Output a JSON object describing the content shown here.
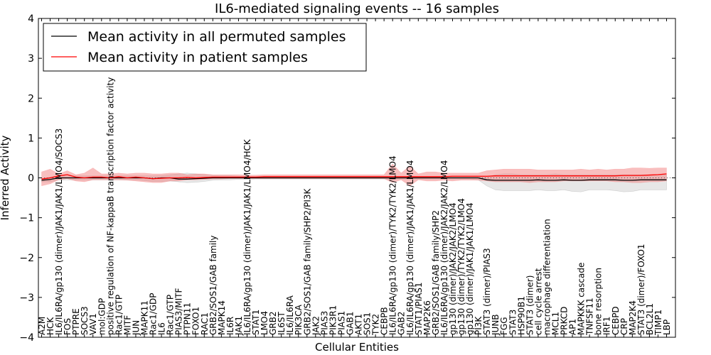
{
  "chart_data": {
    "type": "line",
    "title": "IL6-mediated signaling events -- 16 samples",
    "xlabel": "Cellular Entities",
    "ylabel": "Inferred Activity",
    "ylim": [
      -4,
      4
    ],
    "yticks": [
      -4,
      -3,
      -2,
      -1,
      0,
      1,
      2,
      3,
      4
    ],
    "ytick_labels": [
      "−4",
      "−3",
      "−2",
      "−1",
      "0",
      "1",
      "2",
      "3",
      "4"
    ],
    "grid": false,
    "legend_position": "top-left",
    "legend": [
      {
        "label": "Mean activity in all permuted samples",
        "color": "#000000"
      },
      {
        "label": "Mean activity in patient samples",
        "color": "#ff0000"
      }
    ],
    "categories": [
      "A2M",
      "HCK",
      "IL6/IL6RA/gp130 (dimer)/JAK1/JAK1/LMO4/SOCS3",
      "FOS",
      "PTPRE",
      "SOCS3",
      "VAV1",
      "mol:GDP",
      "positive regulation of NF-kappaB transcription factor activity",
      "Rac1/GTP",
      "MITF",
      "JUN",
      "MAPK11",
      "Rac1/GDP",
      "IL6",
      "Rac1/GTP",
      "PIAS3/MITF",
      "PTPN11",
      "FOXO1",
      "RAC1",
      "GRB2/SOS1/GAB family",
      "MAPK14",
      "IL6R",
      "JAK1",
      "IL6/IL6RA/gp130 (dimer)/JAK1/JAK1/LMO4/HCK",
      "STAT1",
      "LMO4",
      "GRB2",
      "IL6ST",
      "IL6/IL6RA",
      "PIK3CA",
      "GRB2/SOS1/GAB family/SHP2/PI3K",
      "JAK2",
      "PIAS3",
      "PIK3R1",
      "PIAS1",
      "GAB1",
      "AKT1",
      "SOS1",
      "TYK2",
      "CEBPB",
      "IL6/IL6RA/gp130 (dimer)/TYK2/TYK2/LMO4",
      "GAB2",
      "IL6/IL6RA/gp130 (dimer)/JAK1/JAK1/LMO4",
      "STAT1/PIAS1",
      "MAP2K6",
      "GRB2/SOS1/GAB family/SHP2",
      "IL6/IL6RA/gp130 (dimer)/JAK2/JAK2/LMO4",
      "gp130 (dimer)/JAK2/JAK2/LMO4",
      "gp130 (dimer)/TYK2/TYK2/LMO4",
      "gp130 (dimer)/JAK1/JAK1/LMO4",
      "PI3K",
      "STAT3 (dimer)/PIAS3",
      "JUNB",
      "FGG",
      "STAT3",
      "HSP90B1",
      "STAT3 (dimer)",
      "cell cycle arrest",
      "macrophage differentiation",
      "MCL1",
      "PRKCD",
      "AP1",
      "MAPKKK cascade",
      "TNFSF11",
      "bone resorption",
      "IRF1",
      "CEBPD",
      "CRP",
      "MAP2K4",
      "STAT3 (dimer)/FOXO1",
      "BCL2L1",
      "TIMP1",
      "LBP"
    ],
    "series": [
      {
        "name": "Mean activity in all permuted samples",
        "color": "#000000",
        "values": [
          -0.06,
          -0.04,
          0.0,
          0.0,
          0.0,
          0.0,
          0.0,
          0.0,
          0.0,
          0.0,
          0.0,
          0.0,
          0.0,
          -0.02,
          0.0,
          0.0,
          -0.03,
          -0.03,
          -0.02,
          -0.01,
          0.0,
          0.0,
          0.0,
          0.0,
          0.0,
          0.0,
          0.0,
          0.0,
          0.0,
          0.0,
          0.0,
          0.0,
          0.0,
          0.0,
          0.0,
          0.0,
          0.0,
          0.0,
          0.0,
          0.0,
          0.0,
          0.0,
          0.0,
          0.0,
          0.0,
          0.0,
          0.0,
          0.0,
          0.0,
          0.0,
          0.0,
          0.0,
          -0.05,
          -0.06,
          -0.06,
          -0.06,
          -0.06,
          -0.06,
          -0.05,
          -0.06,
          -0.06,
          -0.05,
          -0.06,
          -0.06,
          -0.05,
          -0.05,
          -0.05,
          -0.05,
          -0.06,
          -0.06,
          -0.05,
          -0.05,
          -0.05,
          -0.05
        ],
        "band_low": [
          -0.1,
          -0.1,
          -0.05,
          -0.05,
          -0.05,
          -0.05,
          -0.05,
          -0.05,
          -0.05,
          -0.05,
          -0.05,
          -0.05,
          -0.07,
          -0.09,
          -0.09,
          -0.08,
          -0.1,
          -0.12,
          -0.11,
          -0.09,
          -0.06,
          -0.05,
          -0.05,
          -0.04,
          -0.04,
          -0.03,
          -0.03,
          -0.03,
          -0.03,
          -0.03,
          -0.03,
          -0.03,
          -0.03,
          -0.03,
          -0.03,
          -0.03,
          -0.03,
          -0.03,
          -0.03,
          -0.03,
          -0.03,
          -0.03,
          -0.03,
          -0.03,
          -0.03,
          -0.03,
          -0.03,
          -0.03,
          -0.03,
          -0.03,
          -0.03,
          -0.05,
          -0.2,
          -0.3,
          -0.32,
          -0.32,
          -0.32,
          -0.32,
          -0.3,
          -0.32,
          -0.32,
          -0.3,
          -0.34,
          -0.35,
          -0.3,
          -0.3,
          -0.3,
          -0.32,
          -0.35,
          -0.34,
          -0.3,
          -0.3,
          -0.3,
          -0.3
        ],
        "band_high": [
          -0.02,
          0.02,
          0.05,
          0.05,
          0.05,
          0.05,
          0.05,
          0.05,
          0.05,
          0.05,
          0.05,
          0.05,
          0.05,
          0.05,
          0.06,
          0.08,
          0.1,
          0.12,
          0.1,
          0.08,
          0.06,
          0.05,
          0.05,
          0.04,
          0.04,
          0.03,
          0.03,
          0.03,
          0.03,
          0.03,
          0.03,
          0.03,
          0.03,
          0.03,
          0.03,
          0.03,
          0.03,
          0.03,
          0.03,
          0.03,
          0.03,
          0.03,
          0.03,
          0.03,
          0.03,
          0.03,
          0.03,
          0.03,
          0.03,
          0.03,
          0.03,
          0.03,
          0.02,
          0.08,
          0.1,
          0.1,
          0.08,
          0.08,
          0.08,
          0.08,
          0.1,
          0.08,
          0.08,
          0.08,
          0.08,
          0.08,
          0.08,
          0.08,
          0.08,
          0.08,
          0.08,
          0.08,
          0.08,
          0.08
        ]
      },
      {
        "name": "Mean activity in patient samples",
        "color": "#ff0000",
        "values": [
          -0.03,
          0.0,
          0.05,
          0.08,
          0.02,
          0.0,
          0.02,
          0.02,
          0.0,
          0.03,
          0.0,
          0.02,
          0.0,
          -0.02,
          -0.01,
          0.0,
          0.0,
          0.01,
          0.0,
          0.01,
          0.02,
          0.02,
          0.02,
          0.02,
          0.02,
          0.02,
          0.03,
          0.03,
          0.03,
          0.03,
          0.03,
          0.03,
          0.03,
          0.03,
          0.03,
          0.03,
          0.03,
          0.03,
          0.03,
          0.03,
          0.03,
          0.03,
          0.03,
          0.03,
          0.03,
          0.03,
          0.03,
          0.03,
          0.04,
          0.04,
          0.04,
          0.04,
          0.04,
          0.05,
          0.05,
          0.05,
          0.05,
          0.05,
          0.05,
          0.05,
          0.05,
          0.05,
          0.05,
          0.05,
          0.05,
          0.05,
          0.05,
          0.05,
          0.06,
          0.06,
          0.06,
          0.07,
          0.08,
          0.1
        ],
        "band_low": [
          -0.2,
          -0.15,
          -0.05,
          -0.02,
          -0.08,
          -0.1,
          -0.05,
          -0.05,
          -0.05,
          -0.05,
          -0.06,
          -0.08,
          -0.1,
          -0.12,
          -0.12,
          -0.08,
          -0.08,
          -0.05,
          -0.05,
          -0.04,
          -0.03,
          -0.03,
          -0.02,
          -0.02,
          -0.02,
          -0.02,
          -0.02,
          -0.02,
          -0.02,
          -0.02,
          -0.02,
          -0.02,
          -0.02,
          -0.02,
          -0.02,
          -0.02,
          -0.02,
          -0.02,
          -0.02,
          -0.02,
          -0.02,
          -0.12,
          -0.05,
          -0.2,
          -0.05,
          -0.08,
          -0.08,
          -0.06,
          -0.08,
          -0.06,
          -0.06,
          -0.06,
          -0.08,
          -0.1,
          -0.1,
          -0.1,
          -0.1,
          -0.12,
          -0.1,
          -0.1,
          -0.1,
          -0.08,
          -0.08,
          -0.08,
          -0.08,
          -0.08,
          -0.08,
          -0.1,
          -0.1,
          -0.12,
          -0.12,
          -0.1,
          -0.1,
          -0.08
        ],
        "band_high": [
          0.15,
          0.22,
          0.1,
          0.18,
          0.08,
          0.12,
          0.25,
          0.1,
          0.1,
          0.12,
          0.1,
          0.12,
          0.12,
          0.1,
          0.1,
          0.12,
          0.12,
          0.08,
          0.1,
          0.1,
          0.08,
          0.08,
          0.08,
          0.08,
          0.07,
          0.07,
          0.08,
          0.08,
          0.08,
          0.08,
          0.08,
          0.08,
          0.08,
          0.08,
          0.08,
          0.08,
          0.08,
          0.08,
          0.08,
          0.08,
          0.08,
          0.35,
          0.12,
          0.3,
          0.1,
          0.15,
          0.15,
          0.12,
          0.12,
          0.12,
          0.12,
          0.12,
          0.18,
          0.2,
          0.22,
          0.22,
          0.22,
          0.22,
          0.2,
          0.2,
          0.2,
          0.2,
          0.2,
          0.22,
          0.2,
          0.22,
          0.2,
          0.22,
          0.22,
          0.25,
          0.25,
          0.24,
          0.25,
          0.25
        ]
      }
    ]
  }
}
